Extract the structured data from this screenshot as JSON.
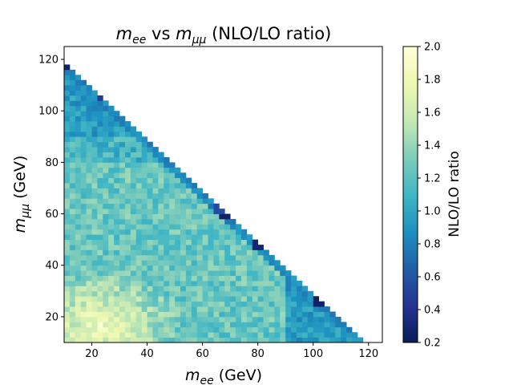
{
  "chart_data": {
    "type": "heatmap",
    "title": "m_ee vs m_μμ (NLO/LO ratio)",
    "title_parts": {
      "var1": "m",
      "sub1": "ee",
      "mid": " vs ",
      "var2": "m",
      "sub2": "μμ",
      "tail": " (NLO/LO ratio)"
    },
    "xlabel_parts": {
      "var": "m",
      "sub": "ee",
      "tail": " (GeV)"
    },
    "ylabel_parts": {
      "var": "m",
      "sub": "μμ",
      "tail": " (GeV)"
    },
    "xlim": [
      10,
      125
    ],
    "ylim": [
      10,
      125
    ],
    "bin_width": 2,
    "x_ticks": [
      "20",
      "40",
      "60",
      "80",
      "100",
      "120"
    ],
    "y_ticks": [
      "20",
      "40",
      "60",
      "80",
      "100",
      "120"
    ],
    "x_tick_values": [
      20,
      40,
      60,
      80,
      100,
      120
    ],
    "y_tick_values": [
      20,
      40,
      60,
      80,
      100,
      120
    ],
    "constraint": "m_ee + m_μμ ≤ 127 GeV (filled triangle)",
    "colormap": "YlGnBu_r",
    "colormap_stops": [
      "#081d58",
      "#253494",
      "#225ea8",
      "#1d91c0",
      "#41b6c4",
      "#7fcdbb",
      "#c7e9b4",
      "#edf8b1",
      "#ffffd9"
    ],
    "colorbar": {
      "label": "NLO/LO ratio",
      "range": [
        0.2,
        2.0
      ],
      "ticks": [
        "0.2",
        "0.4",
        "0.6",
        "0.8",
        "1.0",
        "1.2",
        "1.4",
        "1.6",
        "1.8",
        "2.0"
      ],
      "tick_values": [
        0.2,
        0.4,
        0.6,
        0.8,
        1.0,
        1.2,
        1.4,
        1.6,
        1.8,
        2.0
      ]
    },
    "approx_value_regions": [
      {
        "region": "m_ee < 40 and m_μμ < 30",
        "ratio": 1.7
      },
      {
        "region": "m_ee < 88 and m_μμ < 88 (interior)",
        "ratio": 1.3
      },
      {
        "region": "m_μμ > 88 or m_ee > 88",
        "ratio": 0.95
      },
      {
        "region": "diagonal edge bins",
        "ratio": 0.85
      }
    ],
    "notable_low_bins": [
      {
        "x": 10,
        "y": 117,
        "ratio": 0.25
      },
      {
        "x": 67,
        "y": 59,
        "ratio": 0.25
      },
      {
        "x": 79,
        "y": 47,
        "ratio": 0.3
      },
      {
        "x": 101,
        "y": 25,
        "ratio": 0.25
      },
      {
        "x": 23,
        "y": 105,
        "ratio": 0.45
      },
      {
        "x": 65,
        "y": 61,
        "ratio": 0.55
      }
    ]
  }
}
